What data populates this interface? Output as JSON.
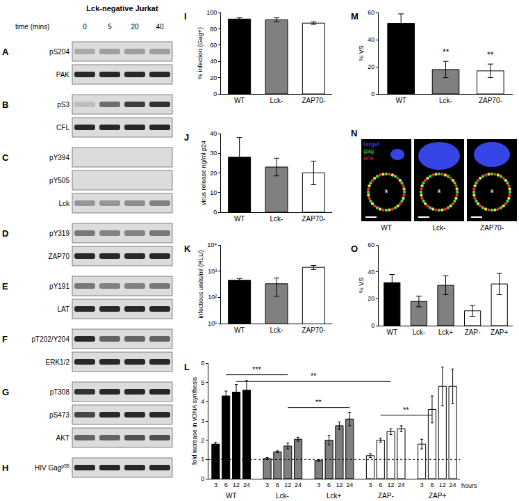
{
  "blots": {
    "title": "Lck-negative Jurkat",
    "time_label": "time (mins)",
    "times": [
      0,
      5,
      20,
      40
    ],
    "panels": [
      {
        "letter": "A",
        "rows": [
          {
            "label": "pS204",
            "intensity": [
              0.25,
              0.3,
              0.3,
              0.3
            ]
          },
          {
            "label": "PAK",
            "intensity": [
              0.9,
              0.9,
              0.9,
              0.9
            ]
          }
        ]
      },
      {
        "letter": "B",
        "rows": [
          {
            "label": "pS3",
            "intensity": [
              0.15,
              0.55,
              0.8,
              0.85
            ]
          },
          {
            "label": "CFL",
            "intensity": [
              0.9,
              0.9,
              0.9,
              0.9
            ]
          }
        ]
      },
      {
        "letter": "C",
        "rows": [
          {
            "label": "pY394",
            "intensity": [
              0,
              0,
              0,
              0
            ]
          },
          {
            "label": "pY505",
            "intensity": [
              0,
              0,
              0,
              0
            ]
          },
          {
            "label": "Lck",
            "intensity": [
              0.35,
              0.35,
              0.4,
              0.45
            ]
          }
        ]
      },
      {
        "letter": "D",
        "rows": [
          {
            "label": "pY319",
            "intensity": [
              0.5,
              0.45,
              0.45,
              0.5
            ]
          },
          {
            "label": "ZAP70",
            "intensity": [
              0.9,
              0.9,
              0.9,
              0.9
            ]
          }
        ]
      },
      {
        "letter": "E",
        "rows": [
          {
            "label": "pY191",
            "intensity": [
              0.5,
              0.45,
              0.45,
              0.5
            ]
          },
          {
            "label": "LAT",
            "intensity": [
              0.9,
              0.9,
              0.9,
              0.9
            ]
          }
        ]
      },
      {
        "letter": "F",
        "rows": [
          {
            "label": "pT202/Y204",
            "intensity": [
              0.9,
              0.6,
              0.6,
              0.6
            ]
          },
          {
            "label": "ERK1/2",
            "intensity": [
              0.9,
              0.9,
              0.9,
              0.9
            ]
          }
        ]
      },
      {
        "letter": "G",
        "rows": [
          {
            "label": "pT308",
            "intensity": [
              0.85,
              0.9,
              0.9,
              0.9
            ]
          },
          {
            "label": "pS473",
            "intensity": [
              0.75,
              0.9,
              0.9,
              0.9
            ]
          },
          {
            "label": "AKT",
            "intensity": [
              0.6,
              0.6,
              0.7,
              0.7
            ]
          }
        ]
      },
      {
        "letter": "H",
        "rows": [
          {
            "label": "HIV Gag",
            "superscript": "p55",
            "intensity": [
              0.9,
              0.9,
              0.9,
              0.9
            ]
          }
        ]
      }
    ]
  },
  "micrographs": {
    "letter": "N",
    "channels": [
      {
        "name": "target",
        "color": "#3b4dff"
      },
      {
        "name": "gag",
        "color": "#3ddc3d"
      },
      {
        "name": "env",
        "color": "#e0303a"
      }
    ],
    "panels": [
      "WT",
      "Lck-",
      "ZAP70-"
    ],
    "cell_mark": "*"
  },
  "chart_data": [
    {
      "letter": "I",
      "type": "bar",
      "y_label": "% infection (Gag+)",
      "categories": [
        "WT",
        "Lck-",
        "ZAP70-"
      ],
      "values": [
        92,
        91,
        87
      ],
      "errors": [
        1.5,
        2.5,
        1.5
      ],
      "colors": [
        "#000000",
        "#808080",
        "#ffffff"
      ],
      "ylim": [
        0,
        100
      ],
      "yticks": [
        0,
        20,
        40,
        60,
        80,
        100
      ]
    },
    {
      "letter": "J",
      "type": "bar",
      "y_label": "virus release ng/ml p24",
      "categories": [
        "WT",
        "Lck-",
        "ZAP70-"
      ],
      "values": [
        28,
        23,
        20
      ],
      "errors": [
        10,
        4.5,
        6
      ],
      "colors": [
        "#000000",
        "#808080",
        "#ffffff"
      ],
      "ylim": [
        0,
        40
      ],
      "yticks": [
        0,
        10,
        20,
        30,
        40
      ]
    },
    {
      "letter": "K",
      "type": "bar",
      "y_label": "infectious units/ml (RLU)",
      "log": "y",
      "categories": [
        "WT",
        "Lck-",
        "ZAP70-"
      ],
      "values": [
        450,
        330,
        1400
      ],
      "errors": [
        70,
        220,
        250
      ],
      "colors": [
        "#000000",
        "#808080",
        "#ffffff"
      ],
      "ylim": [
        10,
        10000
      ],
      "yticks": [
        {
          "value": 10,
          "label": "10¹"
        },
        {
          "value": 100,
          "label": "10²"
        },
        {
          "value": 1000,
          "label": "10³"
        },
        {
          "value": 10000,
          "label": "10⁴"
        }
      ]
    },
    {
      "letter": "L",
      "type": "bar",
      "y_label": "fold increase in vDNA synthesis",
      "x_label": "hours",
      "categories": [
        "3",
        "6",
        "12",
        "24"
      ],
      "series": [
        {
          "name": "WT",
          "color": "#000000",
          "values": [
            1.8,
            4.3,
            4.5,
            4.6
          ],
          "errors": [
            0.1,
            0.25,
            0.4,
            0.5
          ]
        },
        {
          "name": "Lck-",
          "color": "#808080",
          "values": [
            1.05,
            1.4,
            1.7,
            2.05
          ],
          "errors": [
            0.05,
            0.05,
            0.15,
            0.1
          ]
        },
        {
          "name": "Lck+",
          "color": "#808080",
          "values": [
            0.95,
            2.0,
            2.75,
            3.1
          ],
          "errors": [
            0.05,
            0.25,
            0.2,
            0.35
          ]
        },
        {
          "name": "ZAP-",
          "color": "#ffffff",
          "values": [
            1.2,
            2.0,
            2.45,
            2.6
          ],
          "errors": [
            0.1,
            0.1,
            0.15,
            0.15
          ]
        },
        {
          "name": "ZAP+",
          "color": "#ffffff",
          "values": [
            1.8,
            3.6,
            4.8,
            4.8
          ],
          "errors": [
            0.25,
            0.7,
            1.0,
            0.9
          ]
        }
      ],
      "ylim": [
        0,
        6
      ],
      "yticks": [
        0,
        1,
        2,
        3,
        4,
        5,
        6
      ],
      "hline": 1,
      "comparisons": [
        {
          "from": [
            0,
            1
          ],
          "to": [
            1,
            2
          ],
          "y": 5.4,
          "label": "***"
        },
        {
          "from": [
            0,
            2
          ],
          "to": [
            3,
            2
          ],
          "y": 5.05,
          "label": "**"
        },
        {
          "from": [
            1,
            2
          ],
          "to": [
            2,
            3
          ],
          "y": 3.7,
          "label": "**"
        },
        {
          "from": [
            3,
            1
          ],
          "to": [
            4,
            1
          ],
          "y": 3.3,
          "label": "**"
        }
      ]
    },
    {
      "letter": "M",
      "type": "bar",
      "y_label": "% VS",
      "categories": [
        "WT",
        "Lck-",
        "ZAP70-"
      ],
      "values": [
        52,
        18,
        17
      ],
      "errors": [
        7,
        6,
        5
      ],
      "colors": [
        "#000000",
        "#808080",
        "#ffffff"
      ],
      "ylim": [
        0,
        60
      ],
      "yticks": [
        0,
        20,
        40,
        60
      ],
      "annotations": [
        {
          "category": "Lck-",
          "y": 26,
          "text": "**"
        },
        {
          "category": "ZAP70-",
          "y": 24,
          "text": "**"
        }
      ]
    },
    {
      "letter": "O",
      "type": "bar",
      "y_label": "% VS",
      "categories": [
        "WT",
        "Lck-",
        "Lck+",
        "ZAP-",
        "ZAP+"
      ],
      "values": [
        32,
        18,
        30,
        11,
        31
      ],
      "errors": [
        6,
        4,
        7,
        4,
        8
      ],
      "colors": [
        "#000000",
        "#808080",
        "#808080",
        "#ffffff",
        "#ffffff"
      ],
      "ylim": [
        0,
        60
      ],
      "yticks": [
        0,
        20,
        40,
        60
      ]
    }
  ]
}
